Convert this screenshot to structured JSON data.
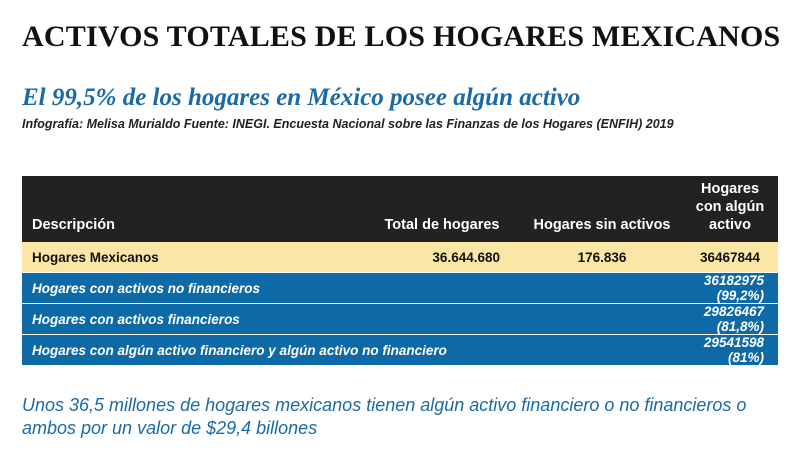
{
  "title": "ACTIVOS TOTALES DE LOS HOGARES MEXICANOS",
  "subtitle": "El 99,5% de los hogares en México posee algún activo",
  "credit": "Infografía: Melisa Murialdo Fuente: INEGI. Encuesta Nacional sobre las Finanzas de los Hogares (ENFIH) 2019",
  "table": {
    "headers": {
      "descripcion": "Descripción",
      "total": "Total de hogares",
      "sin_activos": "Hogares sin activos",
      "con_activo": "Hogares con algún activo"
    },
    "highlight_row": {
      "descripcion": "Hogares Mexicanos",
      "total": "36.644.680",
      "sin_activos": "176.836",
      "con_activo": "36467844"
    },
    "rows": [
      {
        "descripcion": "Hogares con activos no financieros",
        "valor": "36182975 (99,2%)"
      },
      {
        "descripcion": "Hogares con activos financieros",
        "valor": "29826467 (81,8%)"
      },
      {
        "descripcion": "Hogares con algún activo financiero y algún activo no financiero",
        "valor": "29541598 (81%)"
      }
    ]
  },
  "footer": "Unos 36,5 millones de hogares mexicanos tienen algún activo financiero o no financieros o ambos por un valor de $29,4 billones",
  "colors": {
    "header_bg": "#222222",
    "highlight_bg": "#fbe6a6",
    "blue_row_bg": "#0d6aa6",
    "accent_text": "#1a6aa8"
  }
}
